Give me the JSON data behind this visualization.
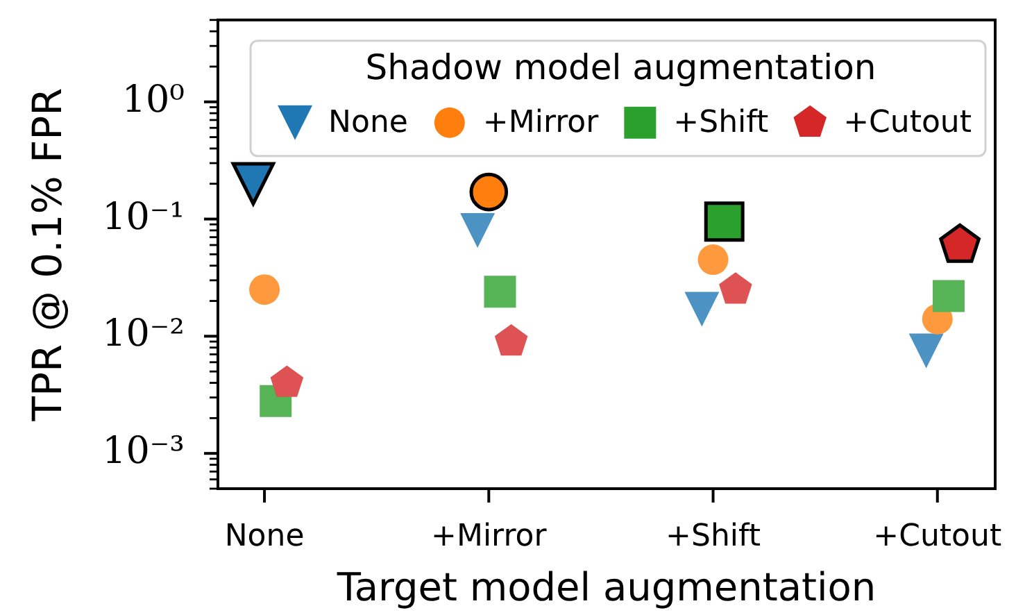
{
  "chart_data": {
    "type": "scatter",
    "xlabel": "Target model augmentation",
    "ylabel": "TPR @ 0.1% FPR",
    "legend_title": "Shadow model augmentation",
    "legend": "top right",
    "log": "y",
    "categories": [
      "None",
      "+Mirror",
      "+Shift",
      "+Cutout"
    ],
    "ylim": [
      0.0005,
      5
    ],
    "yticks": [
      {
        "value": 0.0005,
        "label": null
      },
      {
        "value": 0.0006,
        "label": null
      },
      {
        "value": 0.0007,
        "label": null
      },
      {
        "value": 0.0008,
        "label": null
      },
      {
        "value": 0.0009,
        "label": null
      },
      {
        "value": 0.001,
        "label": "10⁻³"
      },
      {
        "value": 0.002,
        "label": null
      },
      {
        "value": 0.003,
        "label": null
      },
      {
        "value": 0.004,
        "label": null
      },
      {
        "value": 0.005,
        "label": null
      },
      {
        "value": 0.006,
        "label": null
      },
      {
        "value": 0.007,
        "label": null
      },
      {
        "value": 0.008,
        "label": null
      },
      {
        "value": 0.009,
        "label": null
      },
      {
        "value": 0.01,
        "label": "10⁻²"
      },
      {
        "value": 0.02,
        "label": null
      },
      {
        "value": 0.03,
        "label": null
      },
      {
        "value": 0.04,
        "label": null
      },
      {
        "value": 0.05,
        "label": null
      },
      {
        "value": 0.06,
        "label": null
      },
      {
        "value": 0.07,
        "label": null
      },
      {
        "value": 0.08,
        "label": null
      },
      {
        "value": 0.09,
        "label": null
      },
      {
        "value": 0.1,
        "label": "10⁻¹"
      },
      {
        "value": 0.2,
        "label": null
      },
      {
        "value": 0.3,
        "label": null
      },
      {
        "value": 0.4,
        "label": null
      },
      {
        "value": 0.5,
        "label": null
      },
      {
        "value": 0.6,
        "label": null
      },
      {
        "value": 0.7,
        "label": null
      },
      {
        "value": 0.8,
        "label": null
      },
      {
        "value": 0.9,
        "label": null
      },
      {
        "value": 1,
        "label": "10⁰"
      },
      {
        "value": 2,
        "label": null
      },
      {
        "value": 3,
        "label": null
      },
      {
        "value": 4,
        "label": null
      },
      {
        "value": 5,
        "label": null
      }
    ],
    "series": [
      {
        "name": "None",
        "color": "#1f77b4",
        "marker": "triangle",
        "values": [
          0.2,
          0.08,
          0.017,
          0.0075
        ],
        "colors": [
          "#1f77b4",
          "#4c92c3",
          "#4c92c3",
          "#4c92c3"
        ]
      },
      {
        "name": "+Mirror",
        "color": "#ff7f0e",
        "marker": "circle",
        "values": [
          0.025,
          0.17,
          0.045,
          0.014
        ],
        "colors": [
          "#ff993e",
          "#ff7f0e",
          "#ff993e",
          "#ff993e"
        ]
      },
      {
        "name": "+Shift",
        "color": "#2ca02c",
        "marker": "square",
        "values": [
          0.0028,
          0.024,
          0.095,
          0.022
        ],
        "colors": [
          "#56b356",
          "#56b356",
          "#2ca02c",
          "#56b356"
        ]
      },
      {
        "name": "+Cutout",
        "color": "#d62728",
        "values": [
          0.004,
          0.009,
          0.025,
          0.06
        ],
        "colors": [
          "#de5253",
          "#de5253",
          "#de5253",
          "#d62728"
        ]
      }
    ]
  }
}
